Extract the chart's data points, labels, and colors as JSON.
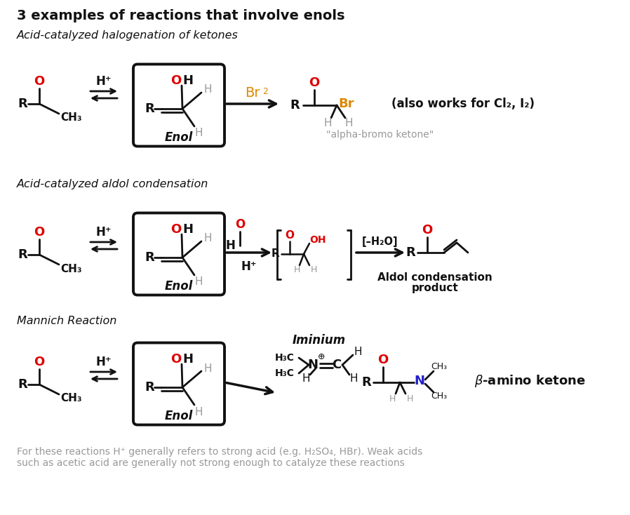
{
  "title": "3 examples of reactions that involve enols",
  "subtitle1": "Acid-catalyzed halogenation of ketones",
  "subtitle2": "Acid-catalyzed aldol condensation",
  "subtitle3": "Mannich Reaction",
  "footer1": "For these reactions H⁺ generally refers to strong acid (e.g. H₂SO₄, HBr). Weak acids",
  "footer2": "such as acetic acid are generally not strong enough to catalyze these reactions",
  "bg_color": "#ffffff",
  "red_color": "#dd0000",
  "orange_color": "#dd8800",
  "blue_color": "#2222cc",
  "gray_color": "#999999",
  "black_color": "#111111"
}
